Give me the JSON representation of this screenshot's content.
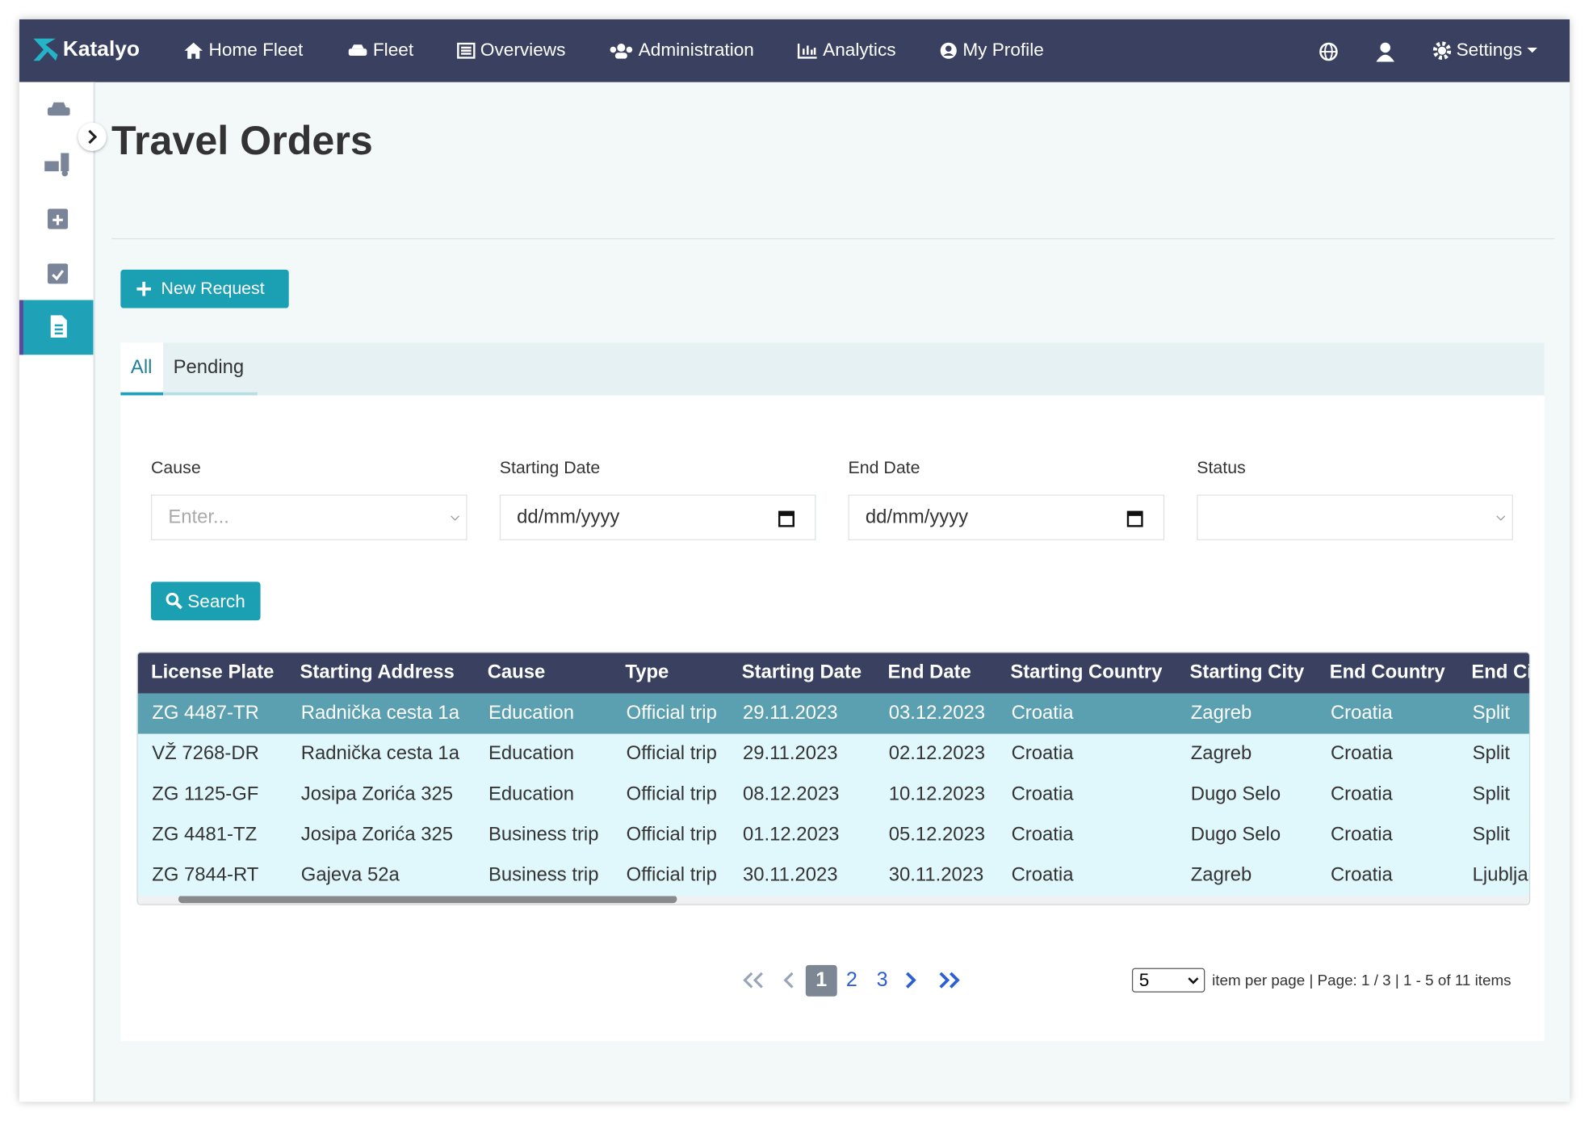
{
  "nav": {
    "brand": "Katalyo",
    "items": [
      "Home Fleet",
      "Fleet",
      "Overviews",
      "Administration",
      "Analytics",
      "My Profile"
    ],
    "settings": "Settings"
  },
  "page_title": "Travel Orders",
  "new_request": "New Request",
  "tabs": [
    "All",
    "Pending"
  ],
  "filters": {
    "labels": [
      "Cause",
      "Starting Date",
      "End Date",
      "Status"
    ],
    "cause_placeholder": "Enter...",
    "start_placeholder": "dd/mm/yyyy",
    "end_placeholder": "dd/mm/yyyy"
  },
  "search": "Search",
  "table": {
    "columns": [
      "License Plate",
      "Starting Address",
      "Cause",
      "Type",
      "Starting Date",
      "End Date",
      "Starting Country",
      "Starting City",
      "End Country",
      "End City"
    ],
    "rows": [
      [
        "ZG 4487-TR",
        "Radnička cesta 1a",
        "Education",
        "Official trip",
        "29.11.2023",
        "03.12.2023",
        "Croatia",
        "Zagreb",
        "Croatia",
        "Split"
      ],
      [
        "VŽ 7268-DR",
        "Radnička cesta 1a",
        "Education",
        "Official trip",
        "29.11.2023",
        "02.12.2023",
        "Croatia",
        "Zagreb",
        "Croatia",
        "Split"
      ],
      [
        "ZG 1125-GF",
        "Josipa Zorića 325",
        "Education",
        "Official trip",
        "08.12.2023",
        "10.12.2023",
        "Croatia",
        "Dugo Selo",
        "Croatia",
        "Split"
      ],
      [
        "ZG 4481-TZ",
        "Josipa Zorića 325",
        "Business trip",
        "Official trip",
        "01.12.2023",
        "05.12.2023",
        "Croatia",
        "Dugo Selo",
        "Croatia",
        "Split"
      ],
      [
        "ZG 7844-RT",
        "Gajeva 52a",
        "Business trip",
        "Official trip",
        "30.11.2023",
        "30.11.2023",
        "Croatia",
        "Zagreb",
        "Croatia",
        "Ljubljana"
      ]
    ]
  },
  "pagination": {
    "pages": [
      "1",
      "2",
      "3"
    ],
    "per_page": "5",
    "info": "item per page | Page: 1 / 3 | 1 - 5 of 11 items"
  }
}
